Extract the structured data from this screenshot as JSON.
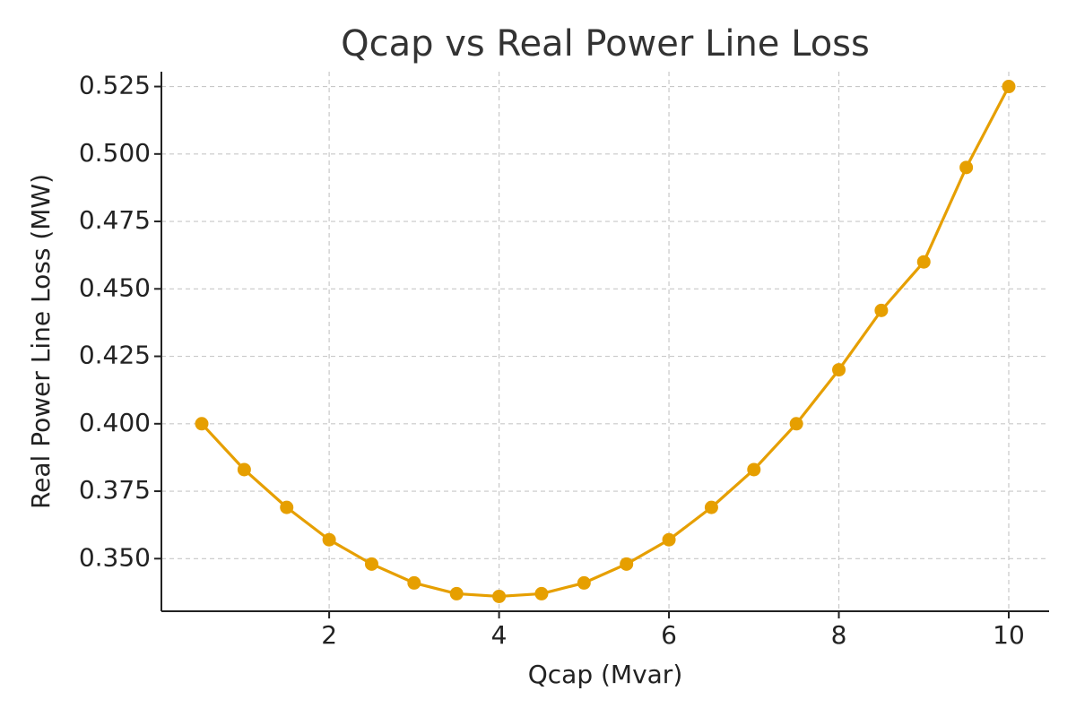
{
  "chart_data": {
    "type": "line",
    "title": "Qcap vs Real Power Line Loss",
    "xlabel": "Qcap (Mvar)",
    "ylabel": "Real Power Line Loss (MW)",
    "xlim": [
      0.025,
      10.475
    ],
    "ylim": [
      0.3305,
      0.5305
    ],
    "xticks": [
      2,
      4,
      6,
      8,
      10
    ],
    "xtick_labels": [
      "2",
      "4",
      "6",
      "8",
      "10"
    ],
    "yticks": [
      0.35,
      0.375,
      0.4,
      0.425,
      0.45,
      0.475,
      0.5,
      0.525
    ],
    "ytick_labels": [
      "0.350",
      "0.375",
      "0.400",
      "0.425",
      "0.450",
      "0.475",
      "0.500",
      "0.525"
    ],
    "grid": true,
    "series": [
      {
        "color": "#E69F00",
        "marker": "circle",
        "x": [
          0.5,
          1.0,
          1.5,
          2.0,
          2.5,
          3.0,
          3.5,
          4.0,
          4.5,
          5.0,
          5.5,
          6.0,
          6.5,
          7.0,
          7.5,
          8.0,
          8.5,
          9.0,
          9.5,
          10.0
        ],
        "values": [
          0.4,
          0.383,
          0.369,
          0.357,
          0.348,
          0.341,
          0.337,
          0.336,
          0.337,
          0.341,
          0.348,
          0.357,
          0.369,
          0.383,
          0.4,
          0.42,
          0.442,
          0.46,
          0.495,
          0.525
        ]
      }
    ]
  }
}
